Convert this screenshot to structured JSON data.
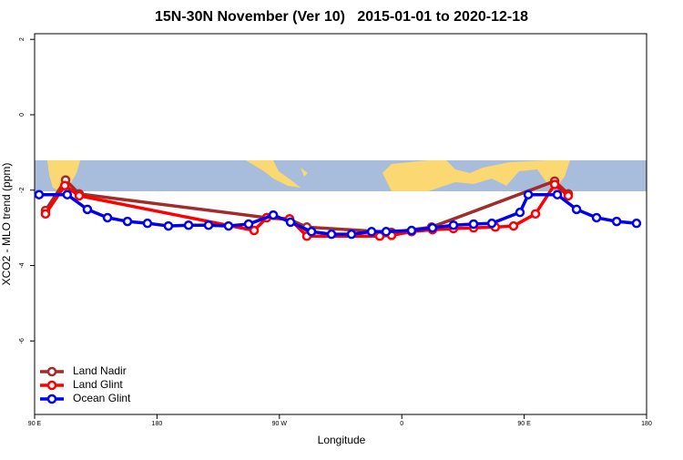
{
  "chart_data": {
    "type": "line",
    "title": "15N-30N November (Ver 10)   2015-01-01 to 2020-12-18",
    "x_label": "Longitude",
    "y_label": "XCO2 - MLO trend (ppm)",
    "xlim": [
      90,
      540
    ],
    "xticks": [
      {
        "value": 90,
        "label": "90 E"
      },
      {
        "value": 180,
        "label": "180"
      },
      {
        "value": 270,
        "label": "90 W"
      },
      {
        "value": 360,
        "label": "0"
      },
      {
        "value": 450,
        "label": "90 E"
      },
      {
        "value": 540,
        "label": "180"
      }
    ],
    "ylim": [
      -7.95,
      2.15
    ],
    "yticks": [
      2,
      0,
      -2,
      -4,
      -6
    ],
    "legend": "bottom-left",
    "series": [
      {
        "name": "Land Nadir",
        "color": "#a52a2a",
        "x": [
          98,
          112.8,
          122.8,
          260.7,
          277.5,
          290.2,
          352.5,
          381.9,
          472.4,
          482.4
        ],
        "values": [
          -2.54,
          -1.73,
          -2.1,
          -2.73,
          -2.78,
          -2.98,
          -3.12,
          -2.98,
          -1.76,
          -2.1
        ]
      },
      {
        "name": "Land Glint",
        "color": "#ff0000",
        "x": [
          98,
          112.2,
          122.8,
          251.4,
          260.7,
          277.5,
          290.2,
          343.8,
          352.5,
          367.2,
          382.6,
          398,
          412.8,
          428.8,
          442.2,
          458.3,
          472.4,
          482.4
        ],
        "values": [
          -2.63,
          -1.88,
          -2.15,
          -3.07,
          -2.73,
          -2.76,
          -3.22,
          -3.22,
          -3.2,
          -3.1,
          -3.05,
          -3.02,
          -3.0,
          -2.98,
          -2.95,
          -2.63,
          -1.85,
          -2.15
        ]
      },
      {
        "name": "Ocean Glint",
        "color": "#0000ee",
        "x": [
          93.3,
          114,
          128.8,
          143.6,
          158.3,
          173,
          188.4,
          203.2,
          217.9,
          232.6,
          247.4,
          265.5,
          278.2,
          293.6,
          308.3,
          323,
          337.8,
          348.5,
          367.2,
          382.6,
          398,
          412.8,
          426.2,
          446.9,
          453,
          474.4,
          488.5,
          503.2,
          518,
          532.6
        ],
        "values": [
          -2.12,
          -2.12,
          -2.51,
          -2.73,
          -2.83,
          -2.88,
          -2.95,
          -2.93,
          -2.93,
          -2.95,
          -2.9,
          -2.66,
          -2.85,
          -3.1,
          -3.17,
          -3.17,
          -3.1,
          -3.1,
          -3.07,
          -3.0,
          -2.93,
          -2.9,
          -2.88,
          -2.59,
          -2.12,
          -2.12,
          -2.51,
          -2.73,
          -2.83,
          -2.88
        ]
      }
    ]
  }
}
